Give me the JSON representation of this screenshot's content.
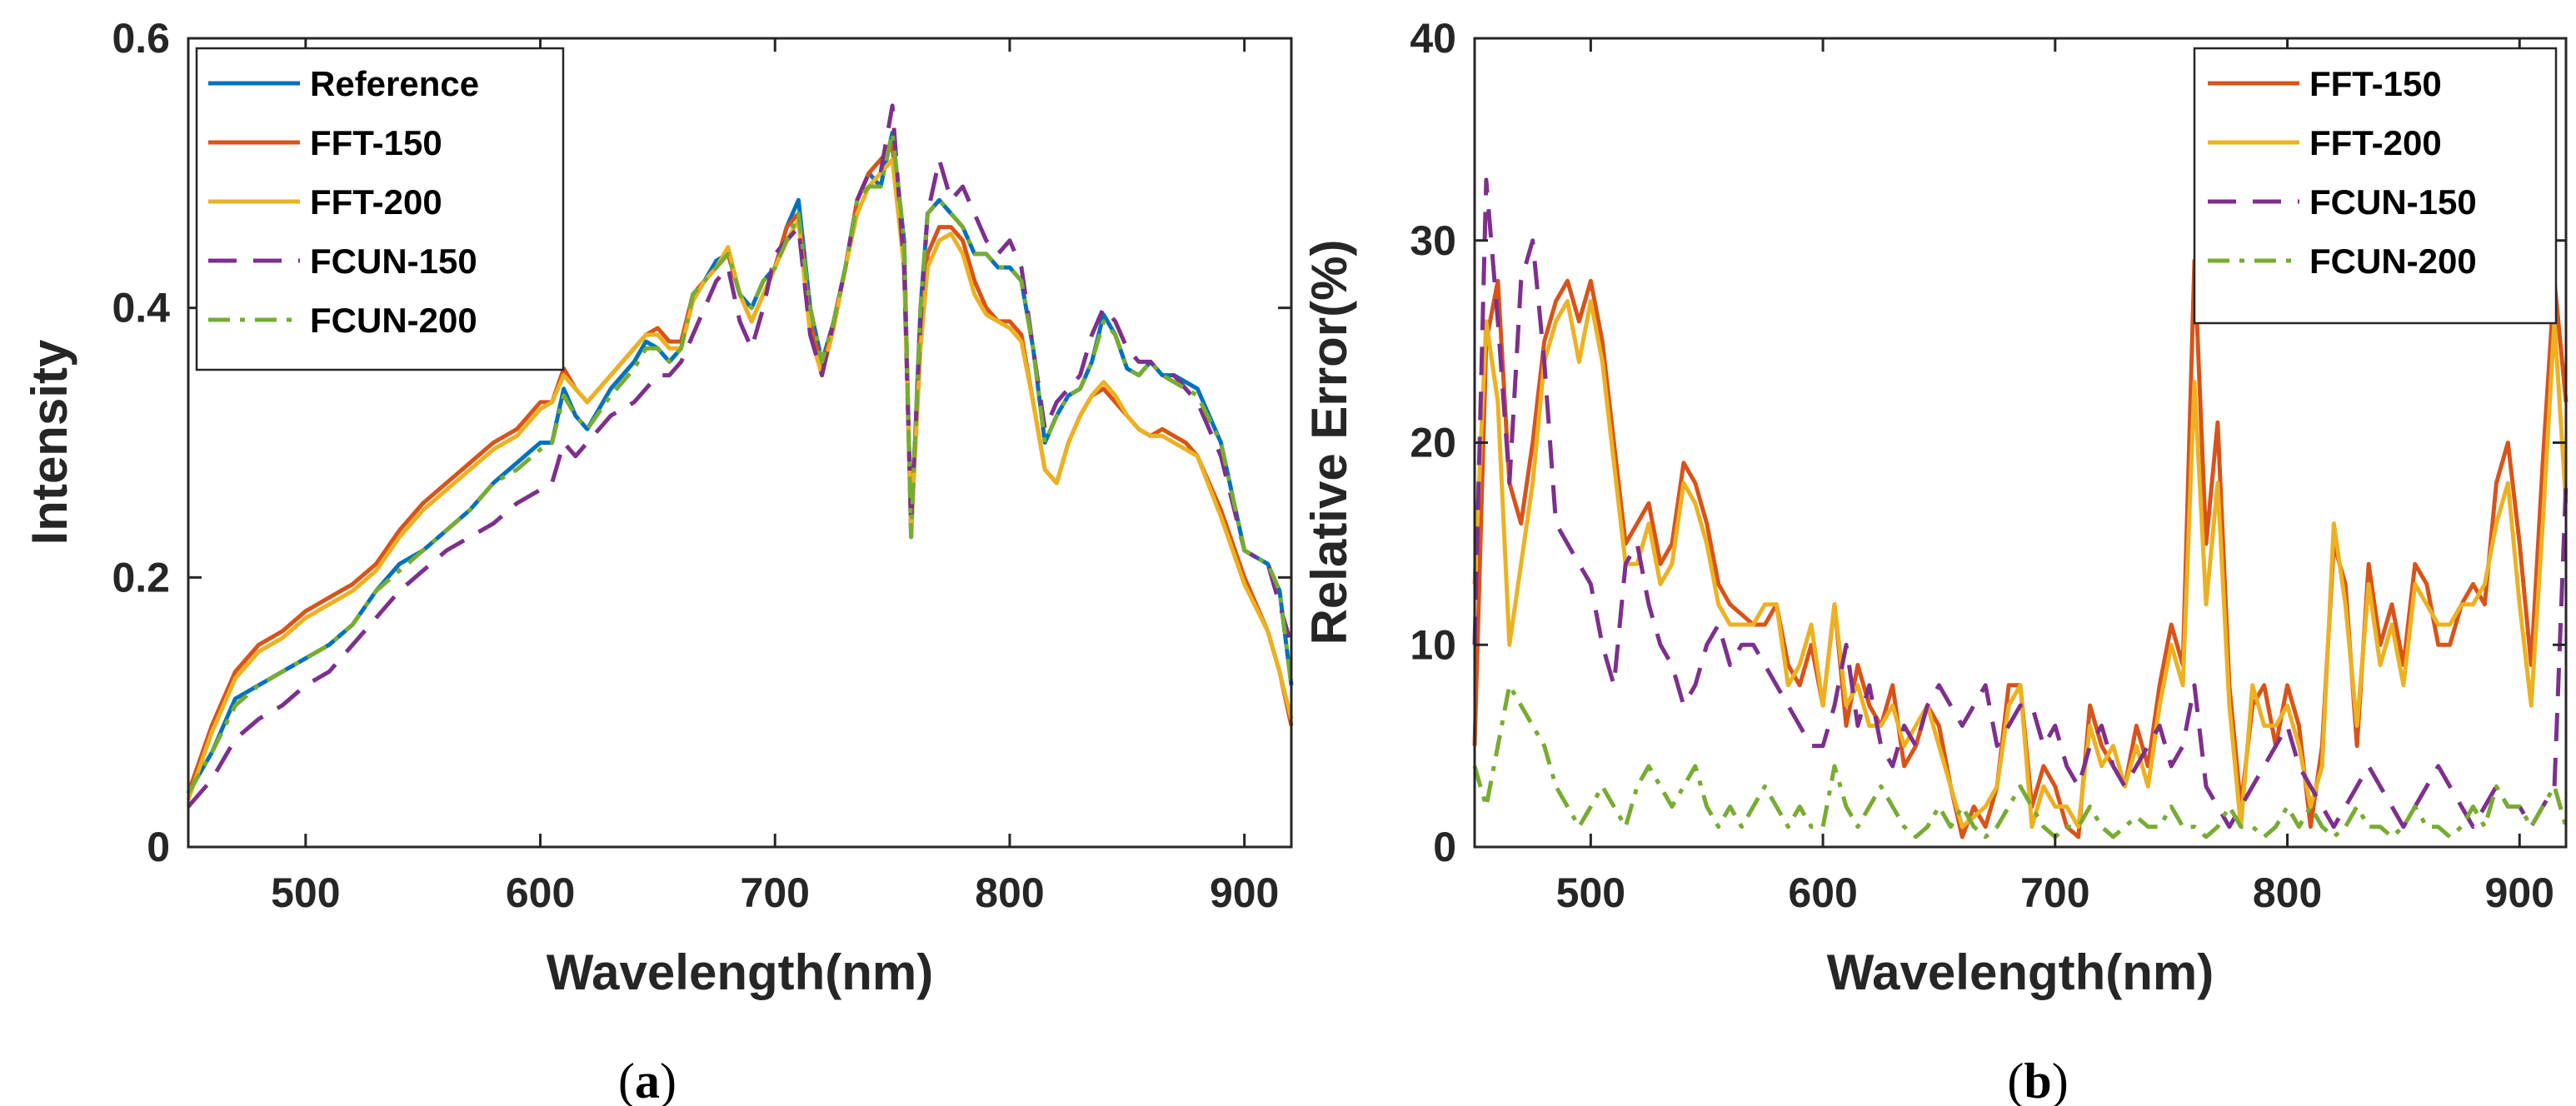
{
  "figure_captions": [
    "(a)",
    "(b)"
  ],
  "chart_data": [
    {
      "type": "line",
      "panel": "(a)",
      "caption": {
        "open": "(",
        "letter": "a",
        "close": ")"
      },
      "title": "",
      "xlabel": "Wavelength(nm)",
      "ylabel": "Intensity",
      "xlim": [
        450,
        920
      ],
      "ylim": [
        0,
        0.6
      ],
      "xticks": [
        500,
        600,
        700,
        800,
        900
      ],
      "yticks": [
        0,
        0.2,
        0.4,
        0.6
      ],
      "xtick_labels": [
        "500",
        "600",
        "700",
        "800",
        "900"
      ],
      "ytick_labels": [
        "0",
        "0.2",
        "0.4",
        "0.6"
      ],
      "grid": false,
      "legend_position": "top-left",
      "x": [
        450,
        460,
        470,
        480,
        490,
        500,
        510,
        520,
        530,
        540,
        550,
        560,
        570,
        580,
        590,
        600,
        605,
        610,
        615,
        620,
        630,
        640,
        645,
        650,
        655,
        660,
        665,
        670,
        675,
        680,
        685,
        690,
        695,
        700,
        705,
        710,
        715,
        720,
        725,
        730,
        735,
        740,
        745,
        750,
        755,
        758,
        762,
        765,
        770,
        775,
        780,
        785,
        790,
        795,
        800,
        805,
        810,
        815,
        820,
        825,
        830,
        835,
        840,
        845,
        850,
        855,
        860,
        865,
        870,
        875,
        880,
        890,
        900,
        910,
        915,
        920
      ],
      "series": [
        {
          "name": "Reference",
          "color": "#0072BD",
          "dash": "solid",
          "values": [
            0.04,
            0.07,
            0.11,
            0.12,
            0.13,
            0.14,
            0.15,
            0.165,
            0.19,
            0.21,
            0.22,
            0.235,
            0.25,
            0.27,
            0.285,
            0.3,
            0.3,
            0.34,
            0.32,
            0.31,
            0.34,
            0.36,
            0.375,
            0.37,
            0.36,
            0.37,
            0.41,
            0.42,
            0.435,
            0.44,
            0.41,
            0.4,
            0.42,
            0.43,
            0.46,
            0.48,
            0.4,
            0.36,
            0.39,
            0.43,
            0.48,
            0.5,
            0.49,
            0.53,
            0.45,
            0.23,
            0.4,
            0.47,
            0.48,
            0.47,
            0.46,
            0.44,
            0.44,
            0.43,
            0.43,
            0.42,
            0.37,
            0.3,
            0.32,
            0.335,
            0.34,
            0.36,
            0.395,
            0.38,
            0.355,
            0.35,
            0.36,
            0.35,
            0.35,
            0.345,
            0.34,
            0.3,
            0.22,
            0.21,
            0.19,
            0.12
          ]
        },
        {
          "name": "FFT-150",
          "color": "#D95319",
          "dash": "solid",
          "values": [
            0.04,
            0.09,
            0.13,
            0.15,
            0.16,
            0.175,
            0.185,
            0.195,
            0.21,
            0.235,
            0.255,
            0.27,
            0.285,
            0.3,
            0.31,
            0.33,
            0.33,
            0.355,
            0.34,
            0.33,
            0.35,
            0.37,
            0.38,
            0.385,
            0.375,
            0.375,
            0.41,
            0.42,
            0.43,
            0.44,
            0.41,
            0.39,
            0.41,
            0.43,
            0.46,
            0.47,
            0.39,
            0.355,
            0.39,
            0.43,
            0.48,
            0.5,
            0.51,
            0.52,
            0.44,
            0.235,
            0.38,
            0.44,
            0.46,
            0.46,
            0.45,
            0.42,
            0.4,
            0.39,
            0.39,
            0.38,
            0.33,
            0.28,
            0.27,
            0.3,
            0.32,
            0.335,
            0.34,
            0.33,
            0.32,
            0.31,
            0.305,
            0.31,
            0.305,
            0.3,
            0.29,
            0.25,
            0.2,
            0.16,
            0.13,
            0.09
          ]
        },
        {
          "name": "FFT-200",
          "color": "#EDB120",
          "dash": "solid",
          "values": [
            0.035,
            0.085,
            0.125,
            0.145,
            0.155,
            0.17,
            0.18,
            0.19,
            0.205,
            0.23,
            0.25,
            0.265,
            0.28,
            0.295,
            0.305,
            0.325,
            0.33,
            0.35,
            0.34,
            0.33,
            0.35,
            0.37,
            0.38,
            0.38,
            0.37,
            0.37,
            0.405,
            0.42,
            0.43,
            0.445,
            0.41,
            0.39,
            0.41,
            0.43,
            0.45,
            0.465,
            0.38,
            0.35,
            0.385,
            0.43,
            0.47,
            0.49,
            0.5,
            0.51,
            0.43,
            0.235,
            0.37,
            0.43,
            0.45,
            0.455,
            0.44,
            0.41,
            0.395,
            0.39,
            0.385,
            0.375,
            0.33,
            0.28,
            0.27,
            0.3,
            0.32,
            0.335,
            0.345,
            0.335,
            0.32,
            0.31,
            0.305,
            0.305,
            0.3,
            0.295,
            0.29,
            0.245,
            0.195,
            0.16,
            0.13,
            0.095
          ]
        },
        {
          "name": "FCUN-150",
          "color": "#7E2F8E",
          "dash": "dashed",
          "values": [
            0.03,
            0.05,
            0.08,
            0.095,
            0.105,
            0.12,
            0.13,
            0.15,
            0.17,
            0.19,
            0.205,
            0.22,
            0.23,
            0.24,
            0.255,
            0.265,
            0.27,
            0.3,
            0.29,
            0.3,
            0.32,
            0.33,
            0.34,
            0.35,
            0.35,
            0.36,
            0.38,
            0.4,
            0.42,
            0.43,
            0.39,
            0.37,
            0.4,
            0.44,
            0.45,
            0.46,
            0.38,
            0.35,
            0.39,
            0.43,
            0.48,
            0.5,
            0.5,
            0.55,
            0.43,
            0.24,
            0.39,
            0.47,
            0.51,
            0.48,
            0.49,
            0.47,
            0.45,
            0.44,
            0.45,
            0.43,
            0.37,
            0.31,
            0.33,
            0.34,
            0.35,
            0.38,
            0.4,
            0.39,
            0.37,
            0.36,
            0.36,
            0.35,
            0.35,
            0.34,
            0.33,
            0.29,
            0.22,
            0.21,
            0.18,
            0.15
          ]
        },
        {
          "name": "FCUN-200",
          "color": "#77AC30",
          "dash": "dashdot",
          "values": [
            0.04,
            0.07,
            0.105,
            0.12,
            0.13,
            0.14,
            0.15,
            0.165,
            0.19,
            0.205,
            0.22,
            0.235,
            0.25,
            0.27,
            0.28,
            0.295,
            0.3,
            0.335,
            0.32,
            0.31,
            0.335,
            0.355,
            0.37,
            0.37,
            0.36,
            0.37,
            0.41,
            0.42,
            0.43,
            0.44,
            0.41,
            0.4,
            0.42,
            0.43,
            0.45,
            0.47,
            0.4,
            0.36,
            0.39,
            0.43,
            0.48,
            0.49,
            0.49,
            0.53,
            0.45,
            0.23,
            0.4,
            0.47,
            0.48,
            0.47,
            0.46,
            0.44,
            0.44,
            0.43,
            0.43,
            0.42,
            0.37,
            0.3,
            0.32,
            0.335,
            0.34,
            0.36,
            0.39,
            0.38,
            0.355,
            0.35,
            0.36,
            0.35,
            0.345,
            0.34,
            0.335,
            0.3,
            0.22,
            0.21,
            0.19,
            0.12
          ]
        }
      ]
    },
    {
      "type": "line",
      "panel": "(b)",
      "caption": {
        "open": "(",
        "letter": "b",
        "close": ")"
      },
      "title": "",
      "xlabel": "Wavelength(nm)",
      "ylabel": "Relative Error(%)",
      "xlim": [
        450,
        920
      ],
      "ylim": [
        0,
        40
      ],
      "xticks": [
        500,
        600,
        700,
        800,
        900
      ],
      "yticks": [
        0,
        10,
        20,
        30,
        40
      ],
      "xtick_labels": [
        "500",
        "600",
        "700",
        "800",
        "900"
      ],
      "ytick_labels": [
        "0",
        "10",
        "20",
        "30",
        "40"
      ],
      "grid": false,
      "legend_position": "top-right",
      "x": [
        450,
        455,
        460,
        465,
        470,
        475,
        480,
        485,
        490,
        495,
        500,
        505,
        510,
        515,
        520,
        525,
        530,
        535,
        540,
        545,
        550,
        555,
        560,
        565,
        570,
        575,
        580,
        585,
        590,
        595,
        600,
        605,
        610,
        615,
        620,
        625,
        630,
        635,
        640,
        645,
        650,
        655,
        660,
        665,
        670,
        675,
        680,
        685,
        690,
        695,
        700,
        705,
        710,
        715,
        720,
        725,
        730,
        735,
        740,
        745,
        750,
        755,
        760,
        765,
        770,
        775,
        780,
        785,
        790,
        795,
        800,
        805,
        810,
        815,
        820,
        825,
        830,
        835,
        840,
        845,
        850,
        855,
        860,
        865,
        870,
        875,
        880,
        885,
        890,
        895,
        900,
        905,
        910,
        915,
        920
      ],
      "series": [
        {
          "name": "FFT-150",
          "color": "#D95319",
          "dash": "solid",
          "values": [
            5,
            25,
            28,
            18,
            16,
            20,
            25,
            27,
            28,
            26,
            28,
            25,
            20,
            15,
            16,
            17,
            14,
            15,
            19,
            18,
            16,
            13,
            12,
            11.5,
            11,
            11,
            12,
            9,
            8,
            10,
            7,
            12,
            6,
            9,
            7,
            6,
            8,
            4,
            5,
            7,
            6,
            3,
            0.5,
            2,
            1,
            3,
            8,
            8,
            2,
            4,
            3,
            1,
            0.5,
            7,
            5,
            4,
            3,
            6,
            4,
            8,
            11,
            9,
            29,
            15,
            21,
            8,
            2,
            7,
            8,
            5,
            8,
            6,
            1,
            5,
            15,
            13,
            5,
            14,
            10,
            12,
            9,
            14,
            13,
            10,
            10,
            12,
            13,
            12,
            18,
            20,
            15,
            9,
            19,
            28,
            22
          ]
        },
        {
          "name": "FFT-200",
          "color": "#EDB120",
          "dash": "solid",
          "values": [
            13,
            26,
            22,
            10,
            14,
            18,
            24,
            26,
            27,
            24,
            27,
            24,
            19,
            14,
            14,
            16,
            13,
            14,
            18,
            17,
            15,
            12,
            11,
            11,
            11,
            12,
            12,
            8,
            9,
            11,
            7,
            12,
            7,
            8,
            6,
            6,
            7,
            5,
            6,
            7,
            5,
            3,
            1,
            1.5,
            2,
            3,
            7,
            8,
            1,
            3,
            2,
            2,
            1,
            6,
            4,
            5,
            3,
            5,
            3,
            7,
            10,
            8,
            23,
            12,
            18,
            7,
            1,
            8,
            6,
            6,
            7,
            5,
            2,
            4,
            16,
            12,
            6,
            13,
            9,
            11,
            8,
            13,
            12,
            11,
            11,
            12,
            12,
            13,
            16,
            18,
            12,
            7,
            16,
            26,
            17
          ]
        },
        {
          "name": "FCUN-150",
          "color": "#7E2F8E",
          "dash": "dashed",
          "values": [
            10,
            33,
            26,
            18,
            28,
            30,
            24,
            16,
            15,
            14,
            13,
            10,
            8,
            14,
            15,
            12,
            10,
            9,
            7,
            8,
            10,
            11,
            9,
            10,
            10,
            9,
            8,
            7,
            6,
            5,
            5,
            7,
            10,
            6,
            8,
            5,
            4,
            6,
            5,
            7,
            8,
            7,
            6,
            7,
            8,
            5,
            6,
            7,
            7,
            5,
            6,
            4,
            3,
            5,
            6,
            4,
            3,
            4,
            5,
            6,
            4,
            5,
            8,
            3,
            2,
            1,
            2,
            3,
            4,
            5,
            6,
            4,
            3,
            2,
            1,
            2,
            3,
            4,
            3,
            2,
            1,
            2,
            3,
            4,
            3,
            2,
            1,
            2,
            3,
            2,
            2,
            1,
            2,
            3,
            18
          ]
        },
        {
          "name": "FCUN-200",
          "color": "#77AC30",
          "dash": "dashdot",
          "values": [
            4,
            2,
            5,
            8,
            7,
            6,
            5,
            3,
            2,
            1,
            2,
            3,
            2,
            1,
            3,
            4,
            3,
            2,
            3,
            4,
            2,
            1,
            2,
            1,
            2,
            3,
            2,
            1,
            2,
            1,
            1,
            4,
            2,
            1,
            2,
            3,
            2,
            1,
            0.5,
            1,
            2,
            1,
            2,
            1,
            0.5,
            1,
            2,
            3,
            2,
            1,
            0.5,
            1,
            1,
            2,
            1,
            0.5,
            1,
            1.5,
            1,
            1,
            2,
            1,
            1,
            0.5,
            1,
            2,
            1,
            1,
            0.5,
            1,
            2,
            1,
            2,
            1,
            0.5,
            1,
            2,
            1,
            1,
            0.5,
            1,
            2,
            1,
            1,
            0.5,
            1,
            2,
            1,
            3,
            2,
            2,
            1,
            2,
            3,
            1
          ]
        }
      ]
    }
  ]
}
